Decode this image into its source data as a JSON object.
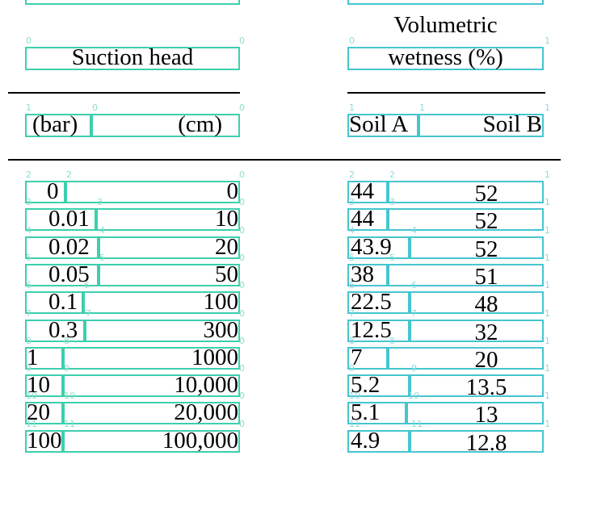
{
  "header": {
    "suction": "Suction head",
    "wet_line1": "Volumetric",
    "wet_line2": "wetness (%)",
    "bar": "(bar)",
    "cm": "(cm)",
    "soil_a": "Soil A",
    "soil_b": "Soil B"
  },
  "header_indices": {
    "suction_l": "0",
    "suction_r": "0",
    "wet_l": "0",
    "wet_r": "1",
    "bar_l": "1",
    "cm_l": "0",
    "cm_r": "0",
    "soilA_l": "1",
    "soilB_l": "1",
    "soilB_r": "1"
  },
  "rows": [
    {
      "idx": "2",
      "bar": "0",
      "cm": "0",
      "a": "44",
      "b": "52"
    },
    {
      "idx": "3",
      "bar": "0.01",
      "cm": "10",
      "a": "44",
      "b": "52"
    },
    {
      "idx": "4",
      "bar": "0.02",
      "cm": "20",
      "a": "43.9",
      "b": "52"
    },
    {
      "idx": "5",
      "bar": "0.05",
      "cm": "50",
      "a": "38",
      "b": "51"
    },
    {
      "idx": "6",
      "bar": "0.1",
      "cm": "100",
      "a": "22.5",
      "b": "48"
    },
    {
      "idx": "7",
      "bar": "0.3",
      "cm": "300",
      "a": "12.5",
      "b": "32"
    },
    {
      "idx": "8",
      "bar": "1",
      "cm": "1000",
      "a": "7",
      "b": "20"
    },
    {
      "idx": "9",
      "bar": "10",
      "cm": "10,000",
      "a": "5.2",
      "b": "13.5"
    },
    {
      "idx": "10",
      "bar": "20",
      "cm": "20,000",
      "a": "5.1",
      "b": "13"
    },
    {
      "idx": "11",
      "bar": "100",
      "cm": "100,000",
      "a": "4.9",
      "b": "12.8"
    }
  ],
  "colors": {
    "left_box": "#3dcfae",
    "right_box": "#45c6cf",
    "index_left": "#8fe0c9",
    "index_right": "#8fd9df"
  }
}
